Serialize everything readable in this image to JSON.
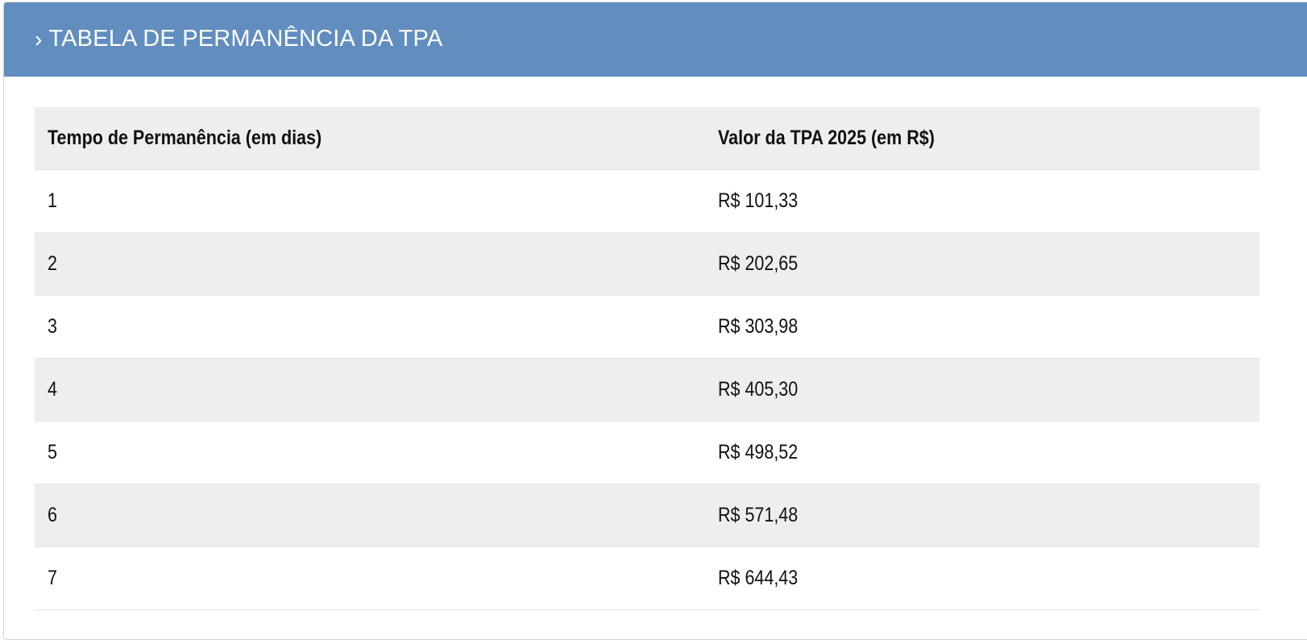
{
  "panel": {
    "chevron": "›",
    "title": "TABELA DE PERMANÊNCIA DA TPA"
  },
  "table": {
    "headers": [
      "Tempo de Permanência (em dias)",
      "Valor da TPA 2025 (em R$)"
    ],
    "rows": [
      {
        "days": "1",
        "value": "R$ 101,33"
      },
      {
        "days": "2",
        "value": "R$ 202,65"
      },
      {
        "days": "3",
        "value": "R$ 303,98"
      },
      {
        "days": "4",
        "value": "R$ 405,30"
      },
      {
        "days": "5",
        "value": "R$ 498,52"
      },
      {
        "days": "6",
        "value": "R$ 571,48"
      },
      {
        "days": "7",
        "value": "R$ 644,43"
      }
    ]
  },
  "colors": {
    "header_bar": "#628dbf",
    "striped_row": "#eeeeee",
    "text": "#111111"
  }
}
